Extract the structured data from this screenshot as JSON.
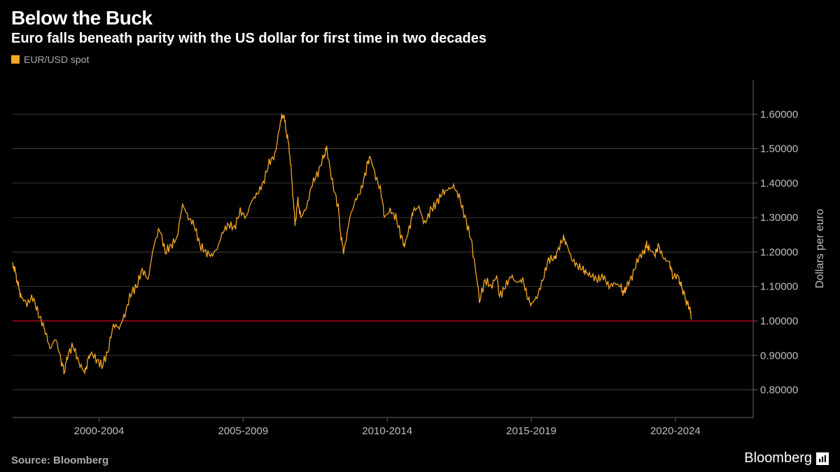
{
  "header": {
    "title": "Below the Buck",
    "subtitle": "Euro falls beneath parity with the US dollar for first time in two decades"
  },
  "legend": {
    "series_label": "EUR/USD spot",
    "swatch_color": "#f5a623"
  },
  "chart": {
    "type": "line",
    "background_color": "#000000",
    "grid_color": "#4a4a4a",
    "axis_line_color": "#666666",
    "tick_length": 6,
    "text_color": "#bfbfbf",
    "axis_label_color": "#bfbfbf",
    "axis_title": "Dollars per euro",
    "axis_title_fontsize": 16,
    "tick_fontsize": 15,
    "line_color": "#f5a623",
    "line_width": 1.3,
    "reference_line": {
      "y": 1.0,
      "color": "#d0021b",
      "width": 1.2
    },
    "ylim": [
      0.72,
      1.7
    ],
    "yticks": [
      0.8,
      0.9,
      1.0,
      1.1,
      1.2,
      1.3,
      1.4,
      1.5,
      1.6
    ],
    "ytick_labels": [
      "0.80000",
      "0.90000",
      "1.00000",
      "1.10000",
      "1.20000",
      "1.30000",
      "1.40000",
      "1.50000",
      "1.60000"
    ],
    "xlim": [
      1999,
      2024.7
    ],
    "xticks": [
      2002,
      2007,
      2012,
      2017,
      2022
    ],
    "xtick_labels": [
      "2000-2004",
      "2005-2009",
      "2010-2014",
      "2015-2019",
      "2020-2024"
    ],
    "series": [
      {
        "x": 1999.0,
        "y": 1.17
      },
      {
        "x": 1999.1,
        "y": 1.14
      },
      {
        "x": 1999.2,
        "y": 1.1
      },
      {
        "x": 1999.3,
        "y": 1.07
      },
      {
        "x": 1999.5,
        "y": 1.05
      },
      {
        "x": 1999.7,
        "y": 1.07
      },
      {
        "x": 1999.9,
        "y": 1.02
      },
      {
        "x": 2000.1,
        "y": 0.98
      },
      {
        "x": 2000.3,
        "y": 0.92
      },
      {
        "x": 2000.5,
        "y": 0.95
      },
      {
        "x": 2000.7,
        "y": 0.88
      },
      {
        "x": 2000.8,
        "y": 0.85
      },
      {
        "x": 2000.9,
        "y": 0.9
      },
      {
        "x": 2001.1,
        "y": 0.93
      },
      {
        "x": 2001.3,
        "y": 0.88
      },
      {
        "x": 2001.5,
        "y": 0.85
      },
      {
        "x": 2001.6,
        "y": 0.88
      },
      {
        "x": 2001.7,
        "y": 0.91
      },
      {
        "x": 2001.9,
        "y": 0.89
      },
      {
        "x": 2002.1,
        "y": 0.87
      },
      {
        "x": 2002.3,
        "y": 0.91
      },
      {
        "x": 2002.5,
        "y": 0.99
      },
      {
        "x": 2002.7,
        "y": 0.98
      },
      {
        "x": 2002.9,
        "y": 1.02
      },
      {
        "x": 2003.1,
        "y": 1.08
      },
      {
        "x": 2003.3,
        "y": 1.1
      },
      {
        "x": 2003.5,
        "y": 1.15
      },
      {
        "x": 2003.7,
        "y": 1.12
      },
      {
        "x": 2003.9,
        "y": 1.22
      },
      {
        "x": 2004.1,
        "y": 1.27
      },
      {
        "x": 2004.3,
        "y": 1.2
      },
      {
        "x": 2004.5,
        "y": 1.22
      },
      {
        "x": 2004.7,
        "y": 1.24
      },
      {
        "x": 2004.9,
        "y": 1.34
      },
      {
        "x": 2005.1,
        "y": 1.3
      },
      {
        "x": 2005.3,
        "y": 1.28
      },
      {
        "x": 2005.5,
        "y": 1.22
      },
      {
        "x": 2005.7,
        "y": 1.2
      },
      {
        "x": 2005.9,
        "y": 1.19
      },
      {
        "x": 2006.1,
        "y": 1.21
      },
      {
        "x": 2006.3,
        "y": 1.26
      },
      {
        "x": 2006.5,
        "y": 1.28
      },
      {
        "x": 2006.7,
        "y": 1.27
      },
      {
        "x": 2006.9,
        "y": 1.32
      },
      {
        "x": 2007.1,
        "y": 1.3
      },
      {
        "x": 2007.3,
        "y": 1.35
      },
      {
        "x": 2007.5,
        "y": 1.37
      },
      {
        "x": 2007.7,
        "y": 1.4
      },
      {
        "x": 2007.9,
        "y": 1.46
      },
      {
        "x": 2008.1,
        "y": 1.48
      },
      {
        "x": 2008.3,
        "y": 1.58
      },
      {
        "x": 2008.4,
        "y": 1.6
      },
      {
        "x": 2008.5,
        "y": 1.55
      },
      {
        "x": 2008.6,
        "y": 1.5
      },
      {
        "x": 2008.7,
        "y": 1.4
      },
      {
        "x": 2008.8,
        "y": 1.28
      },
      {
        "x": 2008.9,
        "y": 1.35
      },
      {
        "x": 2009.0,
        "y": 1.3
      },
      {
        "x": 2009.2,
        "y": 1.33
      },
      {
        "x": 2009.4,
        "y": 1.4
      },
      {
        "x": 2009.6,
        "y": 1.43
      },
      {
        "x": 2009.8,
        "y": 1.48
      },
      {
        "x": 2009.9,
        "y": 1.5
      },
      {
        "x": 2010.1,
        "y": 1.4
      },
      {
        "x": 2010.3,
        "y": 1.33
      },
      {
        "x": 2010.4,
        "y": 1.24
      },
      {
        "x": 2010.5,
        "y": 1.2
      },
      {
        "x": 2010.7,
        "y": 1.3
      },
      {
        "x": 2010.9,
        "y": 1.35
      },
      {
        "x": 2011.1,
        "y": 1.38
      },
      {
        "x": 2011.3,
        "y": 1.45
      },
      {
        "x": 2011.4,
        "y": 1.48
      },
      {
        "x": 2011.6,
        "y": 1.42
      },
      {
        "x": 2011.8,
        "y": 1.37
      },
      {
        "x": 2011.9,
        "y": 1.3
      },
      {
        "x": 2012.1,
        "y": 1.32
      },
      {
        "x": 2012.3,
        "y": 1.3
      },
      {
        "x": 2012.5,
        "y": 1.24
      },
      {
        "x": 2012.6,
        "y": 1.22
      },
      {
        "x": 2012.8,
        "y": 1.28
      },
      {
        "x": 2012.9,
        "y": 1.32
      },
      {
        "x": 2013.1,
        "y": 1.33
      },
      {
        "x": 2013.3,
        "y": 1.28
      },
      {
        "x": 2013.5,
        "y": 1.32
      },
      {
        "x": 2013.7,
        "y": 1.34
      },
      {
        "x": 2013.9,
        "y": 1.37
      },
      {
        "x": 2014.1,
        "y": 1.38
      },
      {
        "x": 2014.3,
        "y": 1.39
      },
      {
        "x": 2014.5,
        "y": 1.36
      },
      {
        "x": 2014.7,
        "y": 1.3
      },
      {
        "x": 2014.9,
        "y": 1.24
      },
      {
        "x": 2015.1,
        "y": 1.13
      },
      {
        "x": 2015.2,
        "y": 1.06
      },
      {
        "x": 2015.4,
        "y": 1.12
      },
      {
        "x": 2015.6,
        "y": 1.1
      },
      {
        "x": 2015.8,
        "y": 1.13
      },
      {
        "x": 2015.9,
        "y": 1.07
      },
      {
        "x": 2016.1,
        "y": 1.1
      },
      {
        "x": 2016.3,
        "y": 1.13
      },
      {
        "x": 2016.5,
        "y": 1.11
      },
      {
        "x": 2016.7,
        "y": 1.12
      },
      {
        "x": 2016.9,
        "y": 1.06
      },
      {
        "x": 2017.0,
        "y": 1.05
      },
      {
        "x": 2017.2,
        "y": 1.07
      },
      {
        "x": 2017.4,
        "y": 1.12
      },
      {
        "x": 2017.6,
        "y": 1.18
      },
      {
        "x": 2017.8,
        "y": 1.18
      },
      {
        "x": 2017.9,
        "y": 1.2
      },
      {
        "x": 2018.1,
        "y": 1.24
      },
      {
        "x": 2018.2,
        "y": 1.23
      },
      {
        "x": 2018.4,
        "y": 1.18
      },
      {
        "x": 2018.6,
        "y": 1.16
      },
      {
        "x": 2018.8,
        "y": 1.15
      },
      {
        "x": 2018.9,
        "y": 1.14
      },
      {
        "x": 2019.1,
        "y": 1.13
      },
      {
        "x": 2019.3,
        "y": 1.12
      },
      {
        "x": 2019.5,
        "y": 1.13
      },
      {
        "x": 2019.7,
        "y": 1.1
      },
      {
        "x": 2019.9,
        "y": 1.11
      },
      {
        "x": 2020.1,
        "y": 1.1
      },
      {
        "x": 2020.2,
        "y": 1.08
      },
      {
        "x": 2020.3,
        "y": 1.1
      },
      {
        "x": 2020.5,
        "y": 1.13
      },
      {
        "x": 2020.7,
        "y": 1.18
      },
      {
        "x": 2020.9,
        "y": 1.2
      },
      {
        "x": 2021.0,
        "y": 1.22
      },
      {
        "x": 2021.1,
        "y": 1.21
      },
      {
        "x": 2021.3,
        "y": 1.19
      },
      {
        "x": 2021.4,
        "y": 1.22
      },
      {
        "x": 2021.6,
        "y": 1.18
      },
      {
        "x": 2021.8,
        "y": 1.17
      },
      {
        "x": 2021.9,
        "y": 1.13
      },
      {
        "x": 2022.1,
        "y": 1.13
      },
      {
        "x": 2022.2,
        "y": 1.1
      },
      {
        "x": 2022.3,
        "y": 1.08
      },
      {
        "x": 2022.4,
        "y": 1.05
      },
      {
        "x": 2022.5,
        "y": 1.04
      },
      {
        "x": 2022.55,
        "y": 1.0
      }
    ]
  },
  "footer": {
    "source": "Source: Bloomberg",
    "brand": "Bloomberg"
  }
}
